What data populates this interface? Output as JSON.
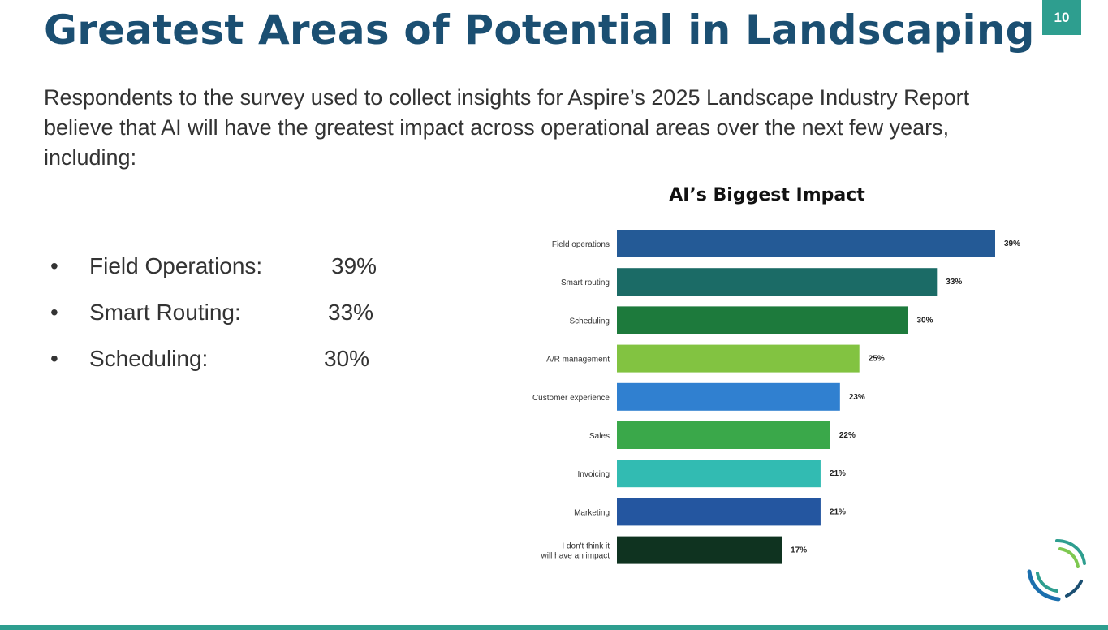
{
  "slide": {
    "title": "Greatest Areas of Potential in Landscaping",
    "page_number": "10",
    "intro": "Respondents to the survey used to collect insights for Aspire’s 2025 Landscape Industry Report believe that AI will have the greatest impact across operational areas over the next few years, including:"
  },
  "bullets": [
    {
      "label": "Field Operations:",
      "value": "39%"
    },
    {
      "label": "Smart Routing:",
      "value": "33%"
    },
    {
      "label": "Scheduling:",
      "value": "30%"
    }
  ],
  "bullet_symbol": "•",
  "chart_data": {
    "type": "bar",
    "orientation": "horizontal",
    "title": "AI’s Biggest Impact",
    "categories": [
      "Field operations",
      "Smart routing",
      "Scheduling",
      "A/R management",
      "Customer experience",
      "Sales",
      "Invoicing",
      "Marketing",
      "I don't think it will have an impact"
    ],
    "values": [
      39,
      33,
      30,
      25,
      23,
      22,
      21,
      21,
      17
    ],
    "value_labels": [
      "39%",
      "33%",
      "30%",
      "25%",
      "23%",
      "22%",
      "21%",
      "21%",
      "17%"
    ],
    "colors": [
      "#245a96",
      "#1b6b66",
      "#1d7a3c",
      "#82c341",
      "#3080d0",
      "#3aa84a",
      "#32bbb2",
      "#2456a0",
      "#0f3320"
    ],
    "xlim": [
      0,
      39
    ],
    "xlabel": "",
    "ylabel": "",
    "grid": false,
    "legend": "none"
  },
  "colors": {
    "title": "#1b4f72",
    "accent": "#2e9e8f"
  }
}
